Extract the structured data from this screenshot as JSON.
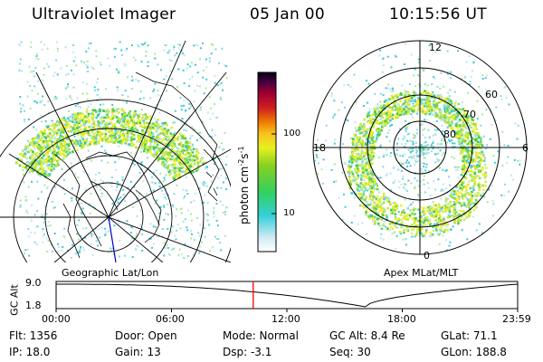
{
  "header": {
    "instrument": "Ultraviolet Imager",
    "date": "05 Jan 00",
    "time": "10:15:56 UT"
  },
  "colorbar": {
    "label_main": "photon cm",
    "label_sup1": "-2",
    "label_mid": "s",
    "label_sup2": "-1",
    "tick_100": "100",
    "tick_10": "10"
  },
  "polar_plot": {
    "mlt_labels": [
      "12",
      "18",
      "6",
      "0"
    ],
    "lat_labels": [
      "60",
      "70",
      "80"
    ]
  },
  "panel_labels": {
    "left": "Geographic Lat/Lon",
    "right": "Apex MLat/MLT"
  },
  "altitude_plot": {
    "ylabel": "GC Alt",
    "y_ticks": [
      "9.0",
      "1.8"
    ],
    "x_ticks": [
      "00:00",
      "06:00",
      "12:00",
      "18:00",
      "23:59"
    ],
    "current_time_fraction": 0.427,
    "line_color": "#ff0000"
  },
  "info": {
    "flt": "Flt: 1356",
    "ip": "IP: 18.0",
    "door": "Door: Open",
    "gain": "Gain: 13",
    "mode": "Mode: Normal",
    "dsp": "Dsp:    -3.1",
    "gcalt": "GC Alt: 8.4 Re",
    "seq": "Seq: 30",
    "glat": "GLat:  71.1",
    "glon": "GLon: 188.8"
  }
}
